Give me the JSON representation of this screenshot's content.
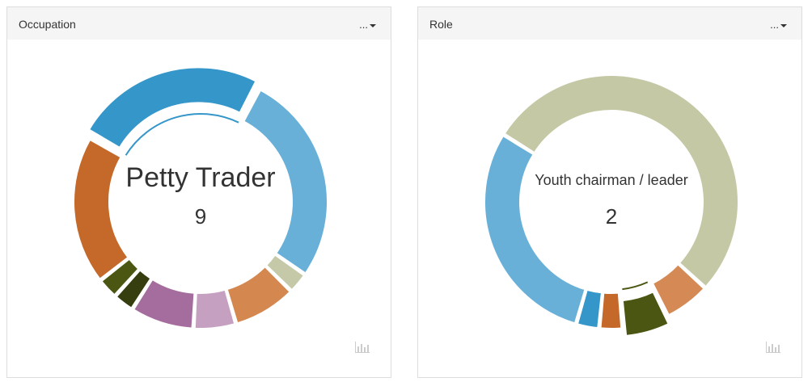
{
  "panels": [
    {
      "title": "Occupation",
      "menu_label": "..."
    },
    {
      "title": "Role",
      "menu_label": "..."
    }
  ],
  "chart_icon": "bar-chart-icon",
  "chart_data": [
    {
      "type": "pie",
      "donut": true,
      "title": "Occupation",
      "highlighted": {
        "label": "Petty Trader",
        "value": "9"
      },
      "slices": [
        {
          "value": 9,
          "color": "#3496c9"
        },
        {
          "value": 10,
          "color": "#68b0d8"
        },
        {
          "value": 1,
          "color": "#c5c9a7"
        },
        {
          "value": 3,
          "color": "#d4884f"
        },
        {
          "value": 2,
          "color": "#c6a0c1"
        },
        {
          "value": 3,
          "color": "#a56d9d"
        },
        {
          "value": 1,
          "color": "#363d0e"
        },
        {
          "value": 1,
          "color": "#4b5612"
        },
        {
          "value": 7,
          "color": "#c4692a"
        }
      ]
    },
    {
      "type": "pie",
      "donut": true,
      "title": "Role",
      "highlighted": {
        "label": "Youth chairman / leader",
        "value": "2"
      },
      "slices": [
        {
          "value": 18,
          "color": "#c4c8a4"
        },
        {
          "value": 2,
          "color": "#d58a55"
        },
        {
          "value": 2,
          "color": "#4b5612"
        },
        {
          "value": 1,
          "color": "#c4692a"
        },
        {
          "value": 1,
          "color": "#3496c9"
        },
        {
          "value": 10,
          "color": "#68b0d8"
        }
      ]
    }
  ]
}
